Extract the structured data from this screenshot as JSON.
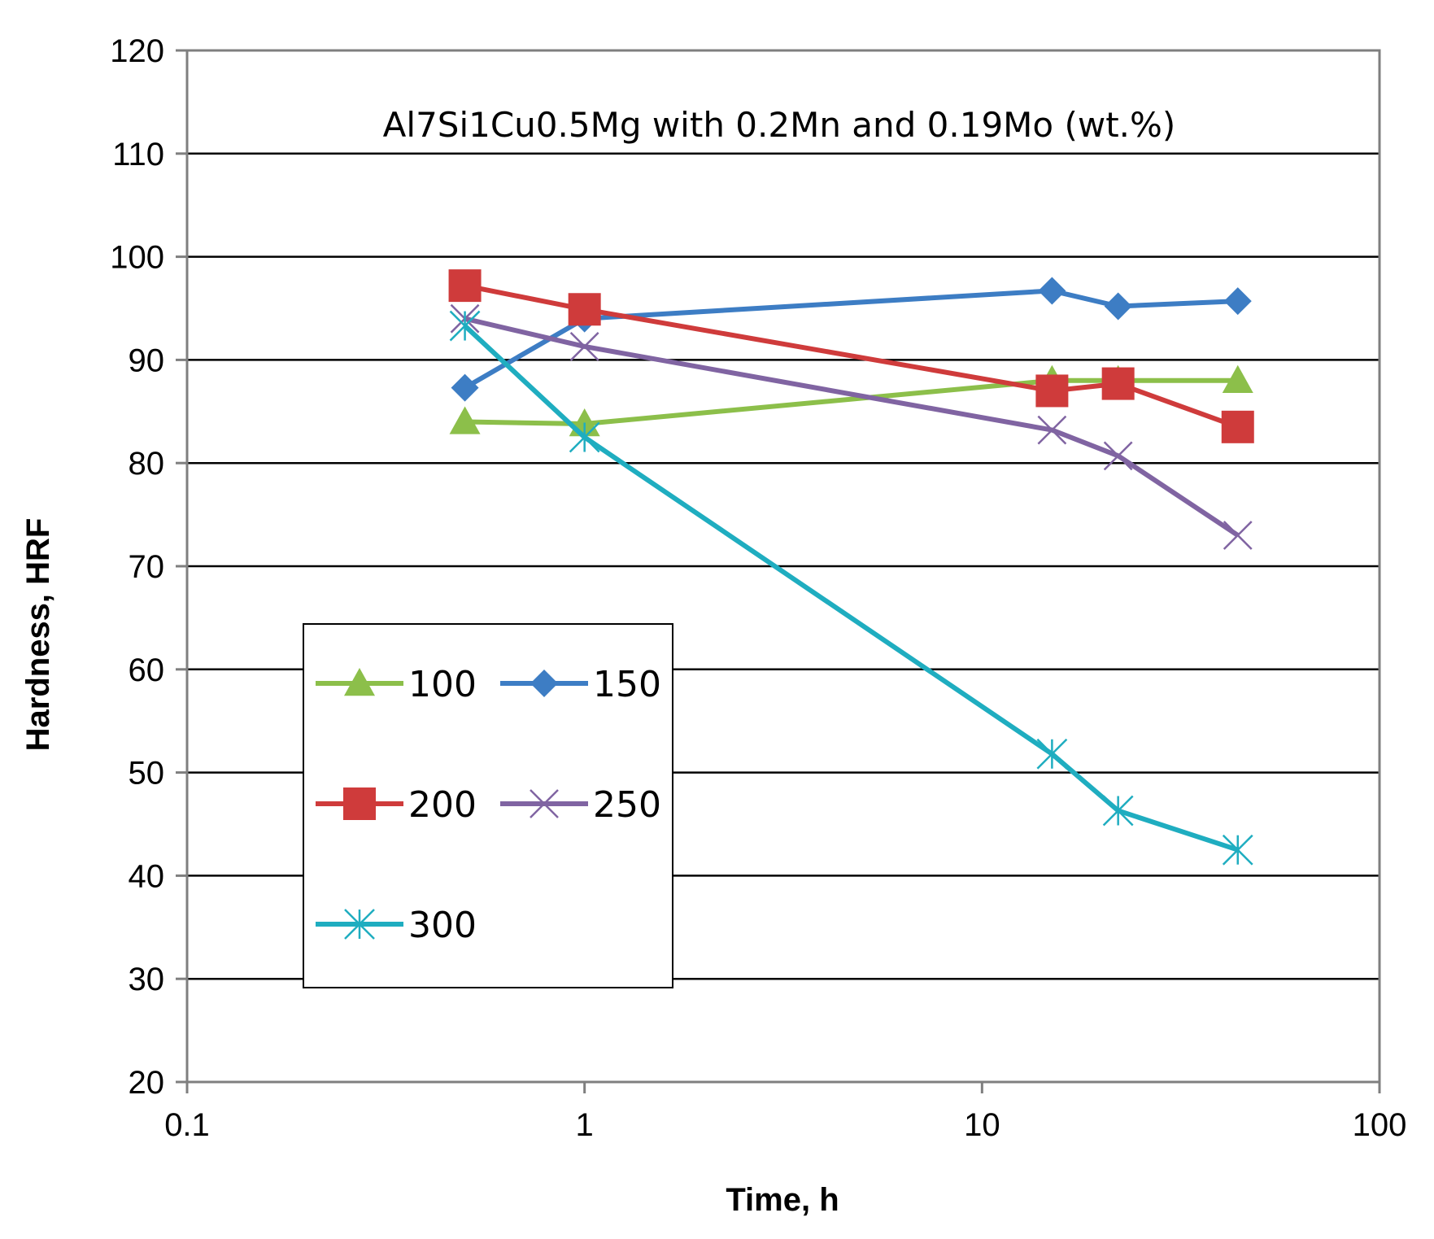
{
  "chart_data": {
    "type": "line",
    "title": "",
    "annotation": "Al7Si1Cu0.5Mg  with 0.2Mn and 0.19Mo (wt.%)",
    "xlabel": "Time, h",
    "ylabel": "Hardness, HRF",
    "xscale": "log",
    "xlim": [
      0.1,
      100
    ],
    "ylim": [
      20,
      120
    ],
    "x_ticks": [
      "0.1",
      "1",
      "10",
      "100"
    ],
    "y_ticks": [
      "20",
      "30",
      "40",
      "50",
      "60",
      "70",
      "80",
      "90",
      "100",
      "110",
      "120"
    ],
    "grid": "horizontal major",
    "legend_position": "left-middle inside plot",
    "series": [
      {
        "name": "100",
        "color": "#8cbf4a",
        "marker": "triangle",
        "x": [
          0.5,
          1,
          15,
          22,
          44
        ],
        "y": [
          84,
          83.8,
          88,
          88,
          88
        ]
      },
      {
        "name": "150",
        "color": "#3d7dc4",
        "marker": "diamond",
        "x": [
          0.5,
          1,
          15,
          22,
          44
        ],
        "y": [
          87.3,
          94,
          96.7,
          95.2,
          95.7
        ]
      },
      {
        "name": "200",
        "color": "#cf3b3b",
        "marker": "square",
        "x": [
          0.5,
          1,
          15,
          22,
          44
        ],
        "y": [
          97.2,
          94.9,
          87,
          87.7,
          83.5
        ]
      },
      {
        "name": "250",
        "color": "#8064a2",
        "marker": "x",
        "x": [
          0.5,
          1,
          15,
          22,
          44
        ],
        "y": [
          94,
          91.3,
          83.2,
          80.7,
          73
        ]
      },
      {
        "name": "300",
        "color": "#1fadc0",
        "marker": "star",
        "x": [
          0.5,
          1,
          15,
          22,
          44
        ],
        "y": [
          93.3,
          82.5,
          51.8,
          46.3,
          42.5
        ]
      }
    ]
  }
}
